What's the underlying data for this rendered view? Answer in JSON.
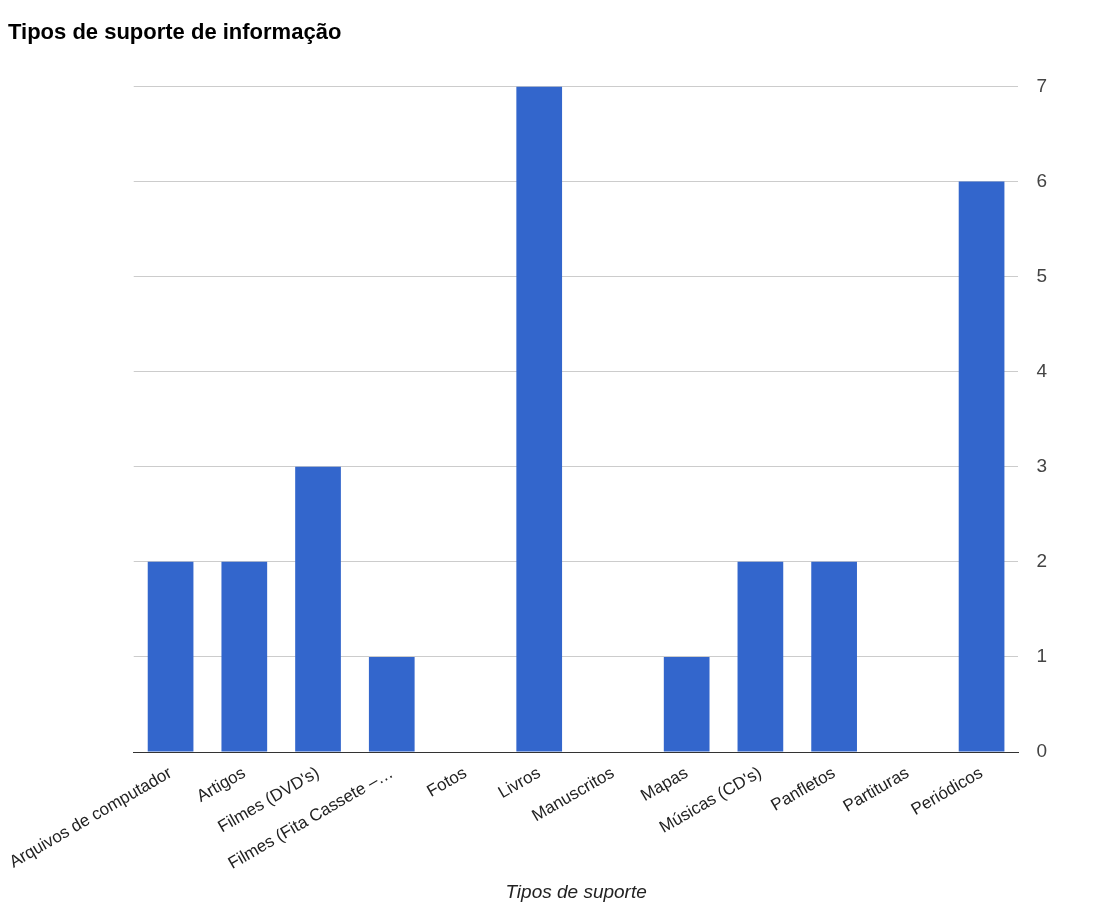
{
  "chart_data": {
    "type": "bar",
    "title": "Tipos de suporte de informação",
    "xlabel": "Tipos de suporte",
    "categories": [
      "Arquivos de computador",
      "Artigos",
      "Filmes (DVD's)",
      "Filmes (Fita Cassete –…",
      "Fotos",
      "Livros",
      "Manuscritos",
      "Mapas",
      "Músicas (CD's)",
      "Panfletos",
      "Partituras",
      "Periódicos"
    ],
    "values": [
      2,
      2,
      3,
      1,
      0,
      7,
      0,
      1,
      2,
      2,
      0,
      6
    ],
    "color": "#3366cc",
    "ylim": [
      0,
      7
    ],
    "yticks": [
      0,
      1,
      2,
      3,
      4,
      5,
      6,
      7
    ],
    "grid": "y",
    "legend": false
  }
}
